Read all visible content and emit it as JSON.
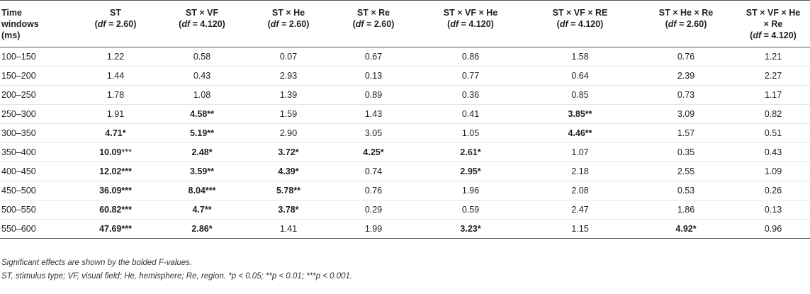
{
  "header": {
    "time": [
      "Time",
      "windows",
      "(ms)"
    ],
    "columns": [
      {
        "label": "ST",
        "df": "2.60"
      },
      {
        "label": "ST × VF",
        "df": "4.120"
      },
      {
        "label": "ST × He",
        "df": "2.60"
      },
      {
        "label": "ST × Re",
        "df": "2.60"
      },
      {
        "label": "ST × VF × He",
        "df": "4.120"
      },
      {
        "label": "ST × VF × RE",
        "df": "4.120"
      },
      {
        "label": "ST × He × Re",
        "df": "2.60"
      },
      {
        "label": "ST × VF × He",
        "label2": "× Re",
        "df": "4.120"
      }
    ],
    "df_prefix": "df",
    "df_eq": " = "
  },
  "rows": [
    {
      "window": "100–150",
      "cells": [
        {
          "v": "1.22"
        },
        {
          "v": "0.58"
        },
        {
          "v": "0.07"
        },
        {
          "v": "0.67"
        },
        {
          "v": "0.86"
        },
        {
          "v": "1.58"
        },
        {
          "v": "0.76"
        },
        {
          "v": "1.21"
        }
      ]
    },
    {
      "window": "150–200",
      "cells": [
        {
          "v": "1.44"
        },
        {
          "v": "0.43"
        },
        {
          "v": "2.93"
        },
        {
          "v": "0.13"
        },
        {
          "v": "0.77"
        },
        {
          "v": "0.64"
        },
        {
          "v": "2.39"
        },
        {
          "v": "2.27"
        }
      ]
    },
    {
      "window": "200–250",
      "cells": [
        {
          "v": "1.78"
        },
        {
          "v": "1.08"
        },
        {
          "v": "1.39"
        },
        {
          "v": "0.89"
        },
        {
          "v": "0.36"
        },
        {
          "v": "0.85"
        },
        {
          "v": "0.73"
        },
        {
          "v": "1.17"
        }
      ]
    },
    {
      "window": "250–300",
      "cells": [
        {
          "v": "1.91"
        },
        {
          "v": "4.58",
          "s": "**",
          "b": true
        },
        {
          "v": "1.59"
        },
        {
          "v": "1.43"
        },
        {
          "v": "0.41"
        },
        {
          "v": "3.85",
          "s": "**",
          "b": true
        },
        {
          "v": "3.09"
        },
        {
          "v": "0.82"
        }
      ]
    },
    {
      "window": "300–350",
      "cells": [
        {
          "v": "4.71",
          "s": "*",
          "b": true
        },
        {
          "v": "5.19",
          "s": "**",
          "b": true
        },
        {
          "v": "2.90"
        },
        {
          "v": "3.05"
        },
        {
          "v": "1.05"
        },
        {
          "v": "4.46",
          "s": "**",
          "b": true
        },
        {
          "v": "1.57"
        },
        {
          "v": "0.51"
        }
      ]
    },
    {
      "window": "350–400",
      "cells": [
        {
          "v": "10.09",
          "s": "***",
          "b": true,
          "plainStar": true
        },
        {
          "v": "2.48",
          "s": "*",
          "b": true
        },
        {
          "v": "3.72",
          "s": "*",
          "b": true
        },
        {
          "v": "4.25",
          "s": "*",
          "b": true
        },
        {
          "v": "2.61",
          "s": "*",
          "b": true
        },
        {
          "v": "1.07"
        },
        {
          "v": "0.35"
        },
        {
          "v": "0.43"
        }
      ]
    },
    {
      "window": "400–450",
      "cells": [
        {
          "v": "12.02",
          "s": "***",
          "b": true
        },
        {
          "v": "3.59",
          "s": "**",
          "b": true
        },
        {
          "v": "4.39",
          "s": "*",
          "b": true
        },
        {
          "v": "0.74"
        },
        {
          "v": "2.95",
          "s": "*",
          "b": true
        },
        {
          "v": "2.18"
        },
        {
          "v": "2.55"
        },
        {
          "v": "1.09"
        }
      ]
    },
    {
      "window": "450–500",
      "cells": [
        {
          "v": "36.09",
          "s": "***",
          "b": true
        },
        {
          "v": "8.04",
          "s": "***",
          "b": true
        },
        {
          "v": "5.78",
          "s": "**",
          "b": true
        },
        {
          "v": "0.76"
        },
        {
          "v": "1.96"
        },
        {
          "v": "2.08"
        },
        {
          "v": "0.53"
        },
        {
          "v": "0.26"
        }
      ]
    },
    {
      "window": "500–550",
      "cells": [
        {
          "v": "60.82",
          "s": "***",
          "b": true
        },
        {
          "v": "4.7",
          "s": "**",
          "b": true
        },
        {
          "v": "3.78",
          "s": "*",
          "b": true
        },
        {
          "v": "0.29"
        },
        {
          "v": "0.59"
        },
        {
          "v": "2.47"
        },
        {
          "v": "1.86"
        },
        {
          "v": "0.13"
        }
      ]
    },
    {
      "window": "550–600",
      "cells": [
        {
          "v": "47.69",
          "s": "***",
          "b": true
        },
        {
          "v": "2.86",
          "s": "*",
          "b": true
        },
        {
          "v": "1.41"
        },
        {
          "v": "1.99"
        },
        {
          "v": "3.23",
          "s": "*",
          "b": true
        },
        {
          "v": "1.15"
        },
        {
          "v": "4.92",
          "s": "*",
          "b": true
        },
        {
          "v": "0.96"
        }
      ]
    }
  ],
  "notes": {
    "line1": "Significant effects are shown by the bolded F-values.",
    "line2": "ST, stimulus type; VF, visual field; He, hemisphere; Re, region. *p < 0.05; **p < 0.01; ***p < 0.001."
  }
}
